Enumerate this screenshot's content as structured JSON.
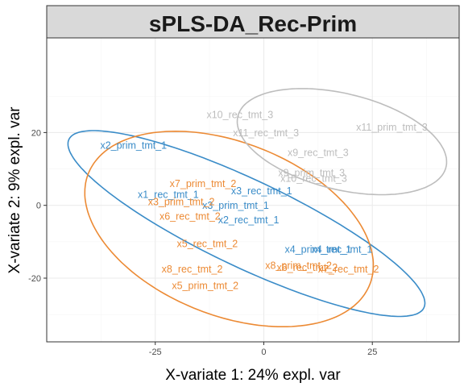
{
  "chart_data": {
    "type": "scatter",
    "title": "sPLS-DA_Rec-Prim",
    "xlabel": "X-variate 1: 24% expl. var",
    "ylabel": "X-variate 2: 9% expl. var",
    "xlim": [
      -50,
      45
    ],
    "ylim": [
      -37.5,
      46
    ],
    "xticks": [
      -25,
      0,
      25
    ],
    "yticks": [
      -20,
      0,
      20
    ],
    "grid": true,
    "colors": {
      "group_blue": "#3a8cc8",
      "group_orange": "#ec8a34",
      "group_grey": "#bdbdbd",
      "strip_fill": "#d9d9d9",
      "grid_major": "#ebebeb",
      "grid_minor": "#f5f5f5"
    },
    "points": [
      {
        "label": "x2_prim_tmt_1",
        "x": -30,
        "y": 16.5,
        "group": "blue"
      },
      {
        "label": "x1_rec_tmt_1",
        "x": -22,
        "y": 3,
        "group": "blue"
      },
      {
        "label": "x3_rec_tmt_1",
        "x": -0.5,
        "y": 4,
        "group": "blue"
      },
      {
        "label": "x3_prim_tmt_1",
        "x": -6.5,
        "y": 0,
        "group": "blue"
      },
      {
        "label": "x2_rec_tmt_1",
        "x": -3.5,
        "y": -4,
        "group": "blue"
      },
      {
        "label": "x4_prim_tmt_1",
        "x": 12.5,
        "y": -12,
        "group": "blue"
      },
      {
        "label": "x4_rec_tmt_1",
        "x": 18,
        "y": -12,
        "group": "blue"
      },
      {
        "label": "x7_prim_tmt_2",
        "x": -14,
        "y": 6,
        "group": "orange"
      },
      {
        "label": "x3_prim_tmt_2",
        "x": -19,
        "y": 1,
        "group": "orange"
      },
      {
        "label": "x6_rec_tmt_2",
        "x": -17,
        "y": -3,
        "group": "orange"
      },
      {
        "label": "x5_rec_tmt_2",
        "x": -13,
        "y": -10.5,
        "group": "orange"
      },
      {
        "label": "x8_rec_tmt_2",
        "x": -16.5,
        "y": -17.5,
        "group": "orange"
      },
      {
        "label": "x5_prim_tmt_2",
        "x": -13.5,
        "y": -22,
        "group": "orange"
      },
      {
        "label": "x8_prim_tmt_2",
        "x": 8,
        "y": -16.5,
        "group": "orange"
      },
      {
        "label": "x6_rec_tmt_2",
        "x": 10,
        "y": -17,
        "group": "orange"
      },
      {
        "label": "x7_rec_tmt_2",
        "x": 19.5,
        "y": -17.5,
        "group": "orange"
      },
      {
        "label": "x10_rec_tmt_3",
        "x": -5.5,
        "y": 25,
        "group": "grey"
      },
      {
        "label": "x11_rec_tmt_3",
        "x": 0.5,
        "y": 20,
        "group": "grey"
      },
      {
        "label": "x11_prim_tmt_3",
        "x": 29.5,
        "y": 21.5,
        "group": "grey"
      },
      {
        "label": "x9_rec_tmt_3",
        "x": 12.5,
        "y": 14.5,
        "group": "grey"
      },
      {
        "label": "x9_prim_tmt_3",
        "x": 11,
        "y": 9,
        "group": "grey"
      },
      {
        "label": "x10_rec_tmt_3",
        "x": 11.5,
        "y": 7.5,
        "group": "grey"
      }
    ],
    "ellipses": [
      {
        "group": "blue",
        "cx": -4,
        "cy": -5,
        "rx": 47,
        "ry": 11.5,
        "angle": -30
      },
      {
        "group": "orange",
        "cx": -8,
        "cy": -6.5,
        "rx": 36,
        "ry": 23,
        "angle": -30
      },
      {
        "group": "grey",
        "cx": 18,
        "cy": 17.5,
        "rx": 25,
        "ry": 13,
        "angle": -18
      }
    ]
  }
}
